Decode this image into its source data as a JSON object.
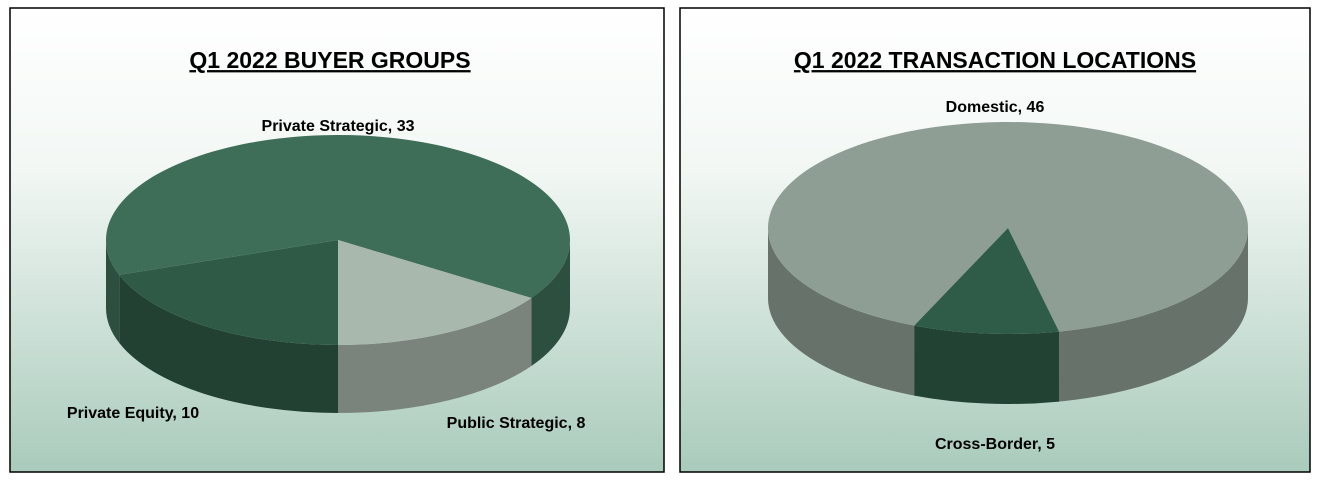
{
  "chart_data": [
    {
      "type": "pie3d",
      "title": "Q1 2022 BUYER  GROUPS",
      "values": [
        10,
        33,
        8
      ],
      "value_labels": [
        "Private Equity, 10",
        "Private Strategic, 33",
        "Public Strategic, 8"
      ],
      "colors": [
        "#2f5a45",
        "#3f6e58",
        "#a9b8ad"
      ]
    },
    {
      "type": "pie3d",
      "title": "Q1 2022 TRANSACTION LOCATIONS",
      "values": [
        46,
        5
      ],
      "value_labels": [
        "Domestic, 46",
        "Cross-Border, 5"
      ],
      "colors": [
        "#8f9e94",
        "#2f5c48"
      ]
    }
  ]
}
